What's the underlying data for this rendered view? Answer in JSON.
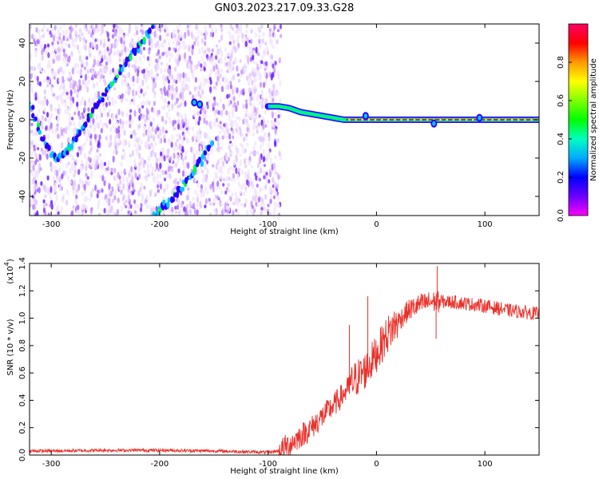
{
  "title": "GN03.2023.217.09.33.G28",
  "colors": {
    "snr_line": "#e8302a",
    "ridge": [
      "#2a00ff",
      "#00c8ff",
      "#00ff40"
    ],
    "scatter": [
      "#f2e6ff",
      "#e2c8ff",
      "#c89bff",
      "#a86bff",
      "#8a3dff",
      "#6a1cff"
    ],
    "colorbar": [
      "#ff00ff",
      "#6a00ff",
      "#0000ff",
      "#00aaff",
      "#00ffc0",
      "#00ff00",
      "#80ff00",
      "#ffff00",
      "#ff9900",
      "#ff0000",
      "#ff0066"
    ]
  },
  "chart_data": [
    {
      "type": "heatmap",
      "title": "GN03.2023.217.09.33.G28",
      "xlabel": "Height of straight line (km)",
      "ylabel": "Frequency (Hz)",
      "xlim": [
        -320,
        150
      ],
      "ylim": [
        -50,
        50
      ],
      "xticks": [
        -300,
        -200,
        -100,
        0,
        100
      ],
      "yticks": [
        -40,
        -20,
        0,
        20,
        40
      ],
      "grid": false,
      "colorbar": {
        "label": "Normalized spectral amplitude",
        "range": [
          0,
          1
        ],
        "ticks": [
          "0.0",
          "0.2",
          "0.4",
          "0.6",
          "0.8"
        ]
      },
      "ridges": [
        {
          "x": [
            -320,
            -310,
            -300,
            -295,
            -288,
            -280,
            -270,
            -260,
            -250,
            -240,
            -230,
            -220,
            -210,
            -205
          ],
          "y": [
            10,
            -8,
            -18,
            -20,
            -18,
            -12,
            -4,
            6,
            14,
            22,
            30,
            38,
            45,
            50
          ]
        },
        {
          "x": [
            -205,
            -200,
            -190,
            -180,
            -170,
            -160,
            -150
          ],
          "y": [
            -50,
            -47,
            -42,
            -36,
            -28,
            -20,
            -10
          ]
        },
        {
          "x": [
            -100,
            -90,
            -80,
            -70,
            -60,
            -50,
            -40,
            -30,
            -25,
            -20,
            -10,
            0,
            50,
            100,
            150
          ],
          "y": [
            7,
            7,
            6,
            4,
            3,
            2,
            1,
            0,
            0,
            0,
            0,
            0,
            0,
            0,
            0
          ]
        }
      ],
      "annotation_points": [
        {
          "x": -168,
          "y": 9
        },
        {
          "x": -163,
          "y": 8
        },
        {
          "x": -10,
          "y": 2
        },
        {
          "x": 53,
          "y": -2
        },
        {
          "x": 95,
          "y": 1
        }
      ]
    },
    {
      "type": "line",
      "xlabel": "Height of straight line (km)",
      "ylabel": "SNR (10 * v/v)",
      "y_multiplier_label": "(x10",
      "y_multiplier_exp": "4",
      "y_multiplier_close": ")",
      "xlim": [
        -320,
        150
      ],
      "ylim": [
        0,
        1.4
      ],
      "xticks": [
        -300,
        -200,
        -100,
        0,
        100
      ],
      "yticks": [
        "0.0",
        "0.2",
        "0.4",
        "0.6",
        "0.8",
        "1.0",
        "1.2",
        "1.4"
      ],
      "grid": false,
      "series": [
        {
          "x": [
            -320,
            -300,
            -250,
            -200,
            -150,
            -100,
            -90,
            -80,
            -70,
            -60,
            -50,
            -40,
            -30,
            -20,
            -10,
            0,
            10,
            20,
            30,
            40,
            50,
            60,
            70,
            80,
            90,
            100,
            120,
            150
          ],
          "values": [
            0.03,
            0.03,
            0.035,
            0.035,
            0.03,
            0.02,
            0.03,
            0.08,
            0.14,
            0.2,
            0.28,
            0.36,
            0.45,
            0.55,
            0.62,
            0.74,
            0.88,
            0.98,
            1.06,
            1.1,
            1.12,
            1.12,
            1.12,
            1.11,
            1.1,
            1.09,
            1.06,
            1.03
          ]
        }
      ],
      "spikes": [
        {
          "x": -25,
          "y": 0.95
        },
        {
          "x": -8,
          "y": 1.16
        },
        {
          "x": 56,
          "y": 1.38
        },
        {
          "x": 55,
          "y": 0.85
        }
      ]
    }
  ]
}
